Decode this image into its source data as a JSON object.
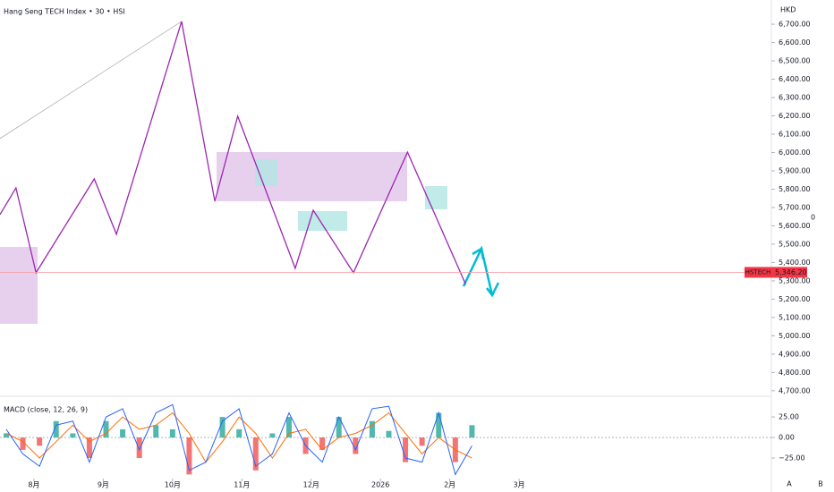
{
  "chart_data": [
    {
      "type": "line",
      "title": "Hang Seng TECH Index • 30 • HSI",
      "y_unit": "HKD",
      "xlim": [
        7.51,
        18.64
      ],
      "xticks": [
        {
          "value": 8,
          "label": "8月"
        },
        {
          "value": 9,
          "label": "9月"
        },
        {
          "value": 10,
          "label": "10月"
        },
        {
          "value": 11,
          "label": "11月"
        },
        {
          "value": 12,
          "label": "12月"
        },
        {
          "value": 13,
          "label": "2026"
        },
        {
          "value": 14,
          "label": "2月"
        },
        {
          "value": 15,
          "label": "3月"
        }
      ],
      "ylim": [
        4670,
        6832
      ],
      "yticks": [
        {
          "value": 6700,
          "label": "6,700.00"
        },
        {
          "value": 6600,
          "label": "6,600.00"
        },
        {
          "value": 6500,
          "label": "6,500.00"
        },
        {
          "value": 6400,
          "label": "6,400.00"
        },
        {
          "value": 6300,
          "label": "6,300.00"
        },
        {
          "value": 6200,
          "label": "6,200.00"
        },
        {
          "value": 6100,
          "label": "6,100.00"
        },
        {
          "value": 6000,
          "label": "6,000.00"
        },
        {
          "value": 5900,
          "label": "5,900.00"
        },
        {
          "value": 5800,
          "label": "5,800.00"
        },
        {
          "value": 5700,
          "label": "5,700.00"
        },
        {
          "value": 5600,
          "label": "5,600.00"
        },
        {
          "value": 5500,
          "label": "5,500.00"
        },
        {
          "value": 5400,
          "label": "5,400.00"
        },
        {
          "value": 5300,
          "label": "5,300.00"
        },
        {
          "value": 5200,
          "label": "5,200.00"
        },
        {
          "value": 5100,
          "label": "5,100.00"
        },
        {
          "value": 5000,
          "label": "5,000.00"
        },
        {
          "value": 4900,
          "label": "4,900.00"
        },
        {
          "value": 4800,
          "label": "4,800.00"
        },
        {
          "value": 4700,
          "label": "4,700.00"
        }
      ],
      "series": [
        {
          "color": "#b0b0b0",
          "x": [
            7.51,
            10.13
          ],
          "values": [
            6076,
            6715
          ]
        },
        {
          "color": "#9c27b0",
          "x": [
            7.51,
            7.74,
            8.03,
            8.87,
            9.19,
            10.13,
            10.61,
            10.94,
            11.77,
            12.03,
            12.61,
            13.39,
            14.23
          ],
          "values": [
            5661,
            5807,
            5344,
            5856,
            5554,
            6715,
            5734,
            6198,
            5368,
            5685,
            5344,
            6002,
            5280
          ]
        }
      ],
      "last_price": {
        "label": "HSTECH",
        "value": 5346.2,
        "value_label": "5,346.20"
      },
      "scale_label": "0"
    },
    {
      "type": "macd",
      "title": "MACD (close, 12, 26, 9)",
      "ylim": [
        -50,
        48
      ],
      "yticks": [
        {
          "value": 25,
          "label": "25.00"
        },
        {
          "value": 0,
          "label": "0.00"
        },
        {
          "value": -25,
          "label": "−25.00"
        }
      ],
      "x": [
        7.6,
        7.84,
        8.08,
        8.32,
        8.56,
        8.8,
        9.04,
        9.28,
        9.52,
        9.76,
        10,
        10.24,
        10.48,
        10.72,
        10.96,
        11.2,
        11.44,
        11.68,
        11.92,
        12.16,
        12.4,
        12.64,
        12.88,
        13.12,
        13.36,
        13.6,
        13.84,
        14.08,
        14.32
      ],
      "macd": {
        "color": "#2962ff",
        "values": [
          10,
          -20,
          -35,
          15,
          20,
          -30,
          25,
          35,
          -15,
          30,
          40,
          -40,
          -30,
          20,
          35,
          -35,
          -20,
          30,
          -10,
          -30,
          25,
          -15,
          35,
          38,
          -25,
          -30,
          30,
          -45,
          -10
        ]
      },
      "signal": {
        "color": "#ff6d00",
        "values": [
          5,
          -5,
          -25,
          -5,
          15,
          -5,
          5,
          25,
          10,
          15,
          30,
          5,
          -30,
          -5,
          25,
          5,
          -25,
          5,
          10,
          -15,
          0,
          5,
          15,
          30,
          5,
          -20,
          0,
          -15,
          -25
        ]
      },
      "histogram": {
        "up_color": "#26a69a",
        "down_color": "#ef5350",
        "values": [
          5,
          -15,
          -10,
          20,
          5,
          -25,
          20,
          10,
          -25,
          15,
          10,
          -45,
          0,
          25,
          10,
          -40,
          5,
          25,
          -20,
          -15,
          25,
          -20,
          20,
          8,
          -30,
          -10,
          30,
          -30,
          15
        ]
      }
    }
  ],
  "buttons": [
    "A",
    "B"
  ]
}
